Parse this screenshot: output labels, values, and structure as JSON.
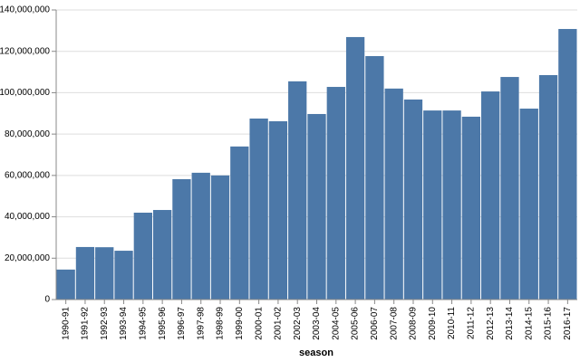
{
  "chart_data": {
    "type": "bar",
    "x_label": "season",
    "categories": [
      "1990-91",
      "1991-92",
      "1992-93",
      "1993-94",
      "1994-95",
      "1995-96",
      "1996-97",
      "1997-98",
      "1998-99",
      "1999-00",
      "2000-01",
      "2001-02",
      "2002-03",
      "2003-04",
      "2004-05",
      "2005-06",
      "2006-07",
      "2007-08",
      "2008-09",
      "2009-10",
      "2010-11",
      "2011-12",
      "2012-13",
      "2013-14",
      "2014-15",
      "2015-16",
      "2016-17"
    ],
    "values": [
      14500000,
      25400000,
      25300000,
      23600000,
      42000000,
      43300000,
      58200000,
      61300000,
      60000000,
      74000000,
      87500000,
      86200000,
      105500000,
      89700000,
      102800000,
      126900000,
      117700000,
      102000000,
      96700000,
      91400000,
      91400000,
      88400000,
      100600000,
      107600000,
      92300000,
      108500000,
      130800000
    ],
    "color": "#4c78a8",
    "ylim": [
      0,
      140000000
    ],
    "yticks": [
      0,
      {
        "value": 20000000,
        "label": "20,000,000"
      },
      {
        "value": 40000000,
        "label": "40,000,000"
      },
      {
        "value": 60000000,
        "label": "60,000,000"
      },
      {
        "value": 80000000,
        "label": "80,000,000"
      },
      {
        "value": 100000000,
        "label": "100,000,000"
      },
      {
        "value": 120000000,
        "label": "120,000,000"
      },
      {
        "value": 140000000,
        "label": "140,000,000"
      }
    ],
    "grid": true
  }
}
